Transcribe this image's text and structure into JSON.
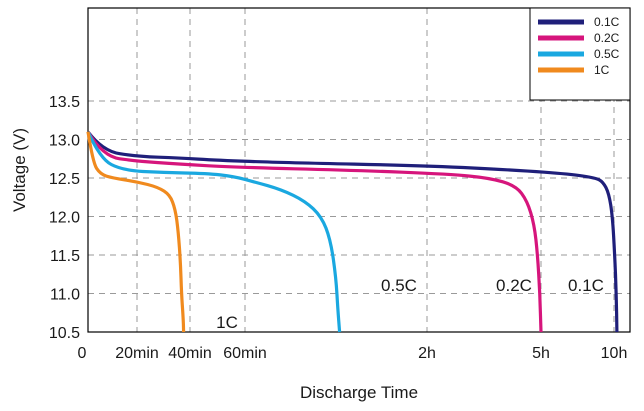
{
  "chart_data": {
    "type": "line",
    "xlabel": "Discharge Time",
    "ylabel": "Voltage (V)",
    "x_scale": "piecewise, discharge time",
    "ylim": [
      10.5,
      14.0
    ],
    "grid": true,
    "legend_position": "top-right",
    "x_ticks": [
      {
        "label": "0",
        "value": "0 min"
      },
      {
        "label": "20min",
        "value": "20 min"
      },
      {
        "label": "40min",
        "value": "40 min"
      },
      {
        "label": "60min",
        "value": "60 min"
      },
      {
        "label": "2h",
        "value": "120 min"
      },
      {
        "label": "5h",
        "value": "300 min"
      },
      {
        "label": "10h",
        "value": "600 min"
      }
    ],
    "y_ticks": [
      "10.5",
      "11.0",
      "11.5",
      "12.0",
      "12.5",
      "13.0",
      "13.5"
    ],
    "y_tick_values": [
      10.5,
      11.0,
      11.5,
      12.0,
      12.5,
      13.0,
      13.5
    ],
    "series": [
      {
        "name": "0.1C",
        "color": "#1f1f7a",
        "curve_label": "0.1C",
        "points": [
          [
            0.0,
            13.1
          ],
          [
            0.3,
            12.85
          ],
          [
            1.0,
            12.78
          ],
          [
            1.8,
            12.76
          ],
          [
            2.5,
            12.73
          ],
          [
            3.2,
            12.7
          ],
          [
            4.0,
            12.66
          ],
          [
            4.8,
            12.6
          ],
          [
            5.4,
            12.55
          ],
          [
            5.75,
            12.5
          ],
          [
            5.85,
            12.45
          ],
          [
            5.93,
            12.3
          ],
          [
            5.98,
            12.0
          ],
          [
            6.01,
            11.5
          ],
          [
            6.03,
            11.0
          ],
          [
            6.04,
            10.5
          ]
        ]
      },
      {
        "name": "0.2C",
        "color": "#d6157c",
        "curve_label": "0.2C",
        "points": [
          [
            0.0,
            13.1
          ],
          [
            0.3,
            12.78
          ],
          [
            1.0,
            12.72
          ],
          [
            1.8,
            12.68
          ],
          [
            2.8,
            12.64
          ],
          [
            3.6,
            12.6
          ],
          [
            4.2,
            12.55
          ],
          [
            4.55,
            12.5
          ],
          [
            4.78,
            12.4
          ],
          [
            4.88,
            12.2
          ],
          [
            4.94,
            11.9
          ],
          [
            4.97,
            11.5
          ],
          [
            4.99,
            11.0
          ],
          [
            5.0,
            10.5
          ]
        ]
      },
      {
        "name": "0.5C",
        "color": "#1aa8e0",
        "curve_label": "0.5C",
        "points": [
          [
            0.0,
            13.1
          ],
          [
            0.25,
            12.75
          ],
          [
            0.7,
            12.6
          ],
          [
            1.5,
            12.57
          ],
          [
            2.3,
            12.56
          ],
          [
            2.8,
            12.52
          ],
          [
            3.05,
            12.45
          ],
          [
            3.2,
            12.35
          ],
          [
            3.33,
            12.2
          ],
          [
            3.42,
            12.0
          ],
          [
            3.47,
            11.7
          ],
          [
            3.5,
            11.2
          ],
          [
            3.51,
            10.8
          ],
          [
            3.52,
            10.5
          ]
        ]
      },
      {
        "name": "1C",
        "color": "#f08a1e",
        "curve_label": "1C",
        "points": [
          [
            0.0,
            13.1
          ],
          [
            0.1,
            12.7
          ],
          [
            0.25,
            12.55
          ],
          [
            0.5,
            12.5
          ],
          [
            1.0,
            12.45
          ],
          [
            1.4,
            12.38
          ],
          [
            1.62,
            12.28
          ],
          [
            1.72,
            12.1
          ],
          [
            1.78,
            11.8
          ],
          [
            1.82,
            11.4
          ],
          [
            1.84,
            11.0
          ],
          [
            1.87,
            10.7
          ],
          [
            1.88,
            10.5
          ]
        ]
      }
    ]
  }
}
